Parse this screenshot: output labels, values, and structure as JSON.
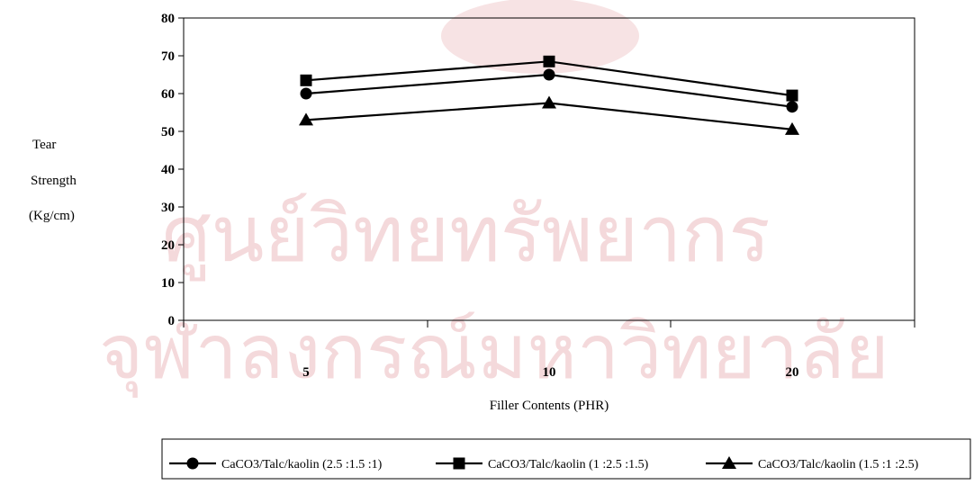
{
  "chart_data": {
    "type": "line",
    "title": "",
    "ylabel_lines": [
      "Tear",
      "Strength",
      "(Kg/cm)"
    ],
    "xlabel": "Filler Contents (PHR)",
    "categories": [
      "5",
      "10",
      "20"
    ],
    "ylim": [
      0,
      80
    ],
    "yticks": [
      "0",
      "10",
      "20",
      "30",
      "40",
      "50",
      "60",
      "70",
      "80"
    ],
    "grid": false,
    "legend_position": "bottom",
    "series": [
      {
        "name": "CaCO3/Talc/kaolin (2.5 :1.5 :1)",
        "marker": "circle",
        "values": [
          60,
          65,
          56.5
        ]
      },
      {
        "name": "CaCO3/Talc/kaolin (1 :2.5 :1.5)",
        "marker": "square",
        "values": [
          63.5,
          68.5,
          59.5
        ]
      },
      {
        "name": "CaCO3/Talc/kaolin (1.5 :1 :2.5)",
        "marker": "triangle",
        "values": [
          53,
          57.5,
          50.5
        ]
      }
    ]
  },
  "watermark": {
    "line1": "ศูนย์วิทยทรัพยากร",
    "line2": "จุฬาลงกรณ์มหาวิทยาลัย"
  }
}
